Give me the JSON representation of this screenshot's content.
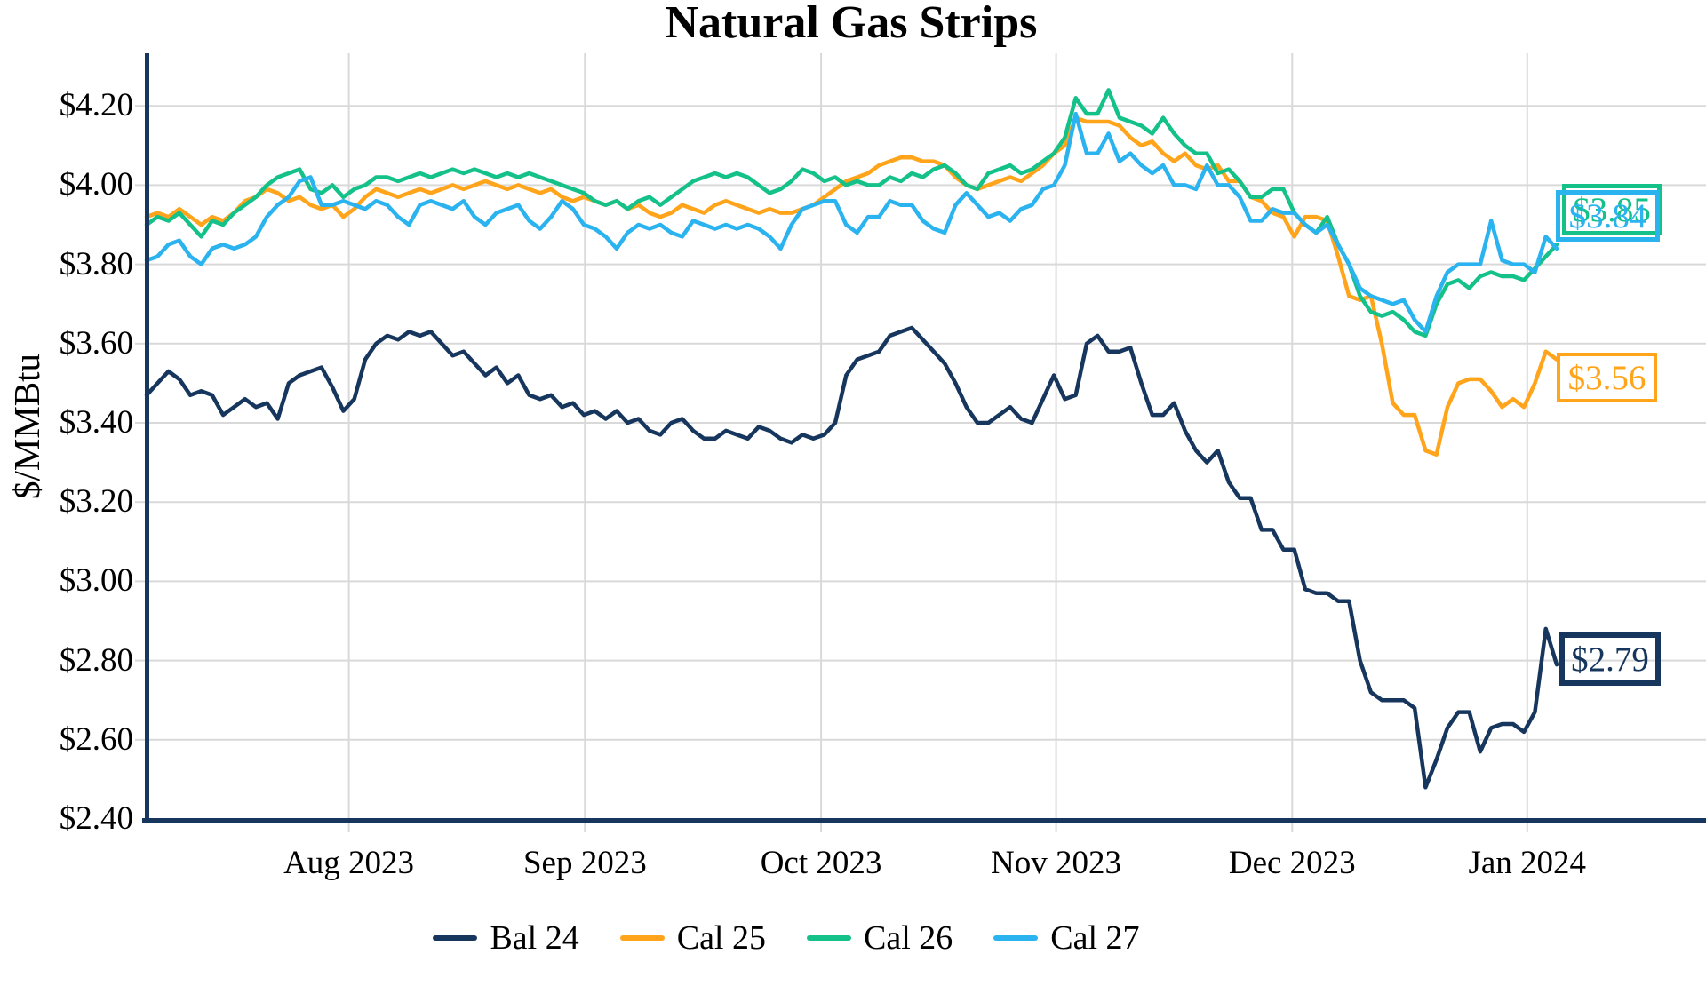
{
  "title": "Natural Gas Strips",
  "y_axis": {
    "label": "$/MMBtu",
    "tick_labels": [
      "$4.20",
      "$4.00",
      "$3.80",
      "$3.60",
      "$3.40",
      "$3.20",
      "$3.00",
      "$2.80",
      "$2.60",
      "$2.40"
    ]
  },
  "x_axis": {
    "tick_labels": [
      "Aug 2023",
      "Sep 2023",
      "Oct 2023",
      "Nov 2023",
      "Dec 2023",
      "Jan 2024"
    ]
  },
  "colors": {
    "bal24": "#17365D",
    "cal25": "#FFA41B",
    "cal26": "#14C189",
    "cal27": "#2BB3F0",
    "gridline": "#D9D9D9",
    "axis": "#17365D"
  },
  "end_labels": [
    {
      "series": "Cal 26",
      "text": "$3.85"
    },
    {
      "series": "Cal 27",
      "text": "$3.84"
    },
    {
      "series": "Cal 25",
      "text": "$3.56"
    },
    {
      "series": "Bal 24",
      "text": "$2.79"
    }
  ],
  "chart_data": {
    "type": "line",
    "title": "Natural Gas Strips",
    "ylabel": "$/MMBtu",
    "ylim": [
      2.4,
      4.3
    ],
    "y_ticks": [
      4.2,
      4.0,
      3.8,
      3.6,
      3.4,
      3.2,
      3.0,
      2.8,
      2.6,
      2.4
    ],
    "grid": true,
    "legend_position": "bottom",
    "x_range": [
      0,
      129
    ],
    "x_tick_labels": [
      "Aug 2023",
      "Sep 2023",
      "Oct 2023",
      "Nov 2023",
      "Dec 2023",
      "Jan 2024"
    ],
    "x_tick_positions": [
      18.5,
      40.1,
      61.7,
      83.2,
      104.8,
      126.3
    ],
    "series": [
      {
        "name": "Bal 24",
        "color": "#17365D",
        "end_value": 2.79,
        "end_label": "$2.79",
        "values": [
          3.47,
          3.5,
          3.53,
          3.51,
          3.47,
          3.48,
          3.47,
          3.42,
          3.44,
          3.46,
          3.44,
          3.45,
          3.41,
          3.5,
          3.52,
          3.53,
          3.54,
          3.49,
          3.43,
          3.46,
          3.56,
          3.6,
          3.62,
          3.61,
          3.63,
          3.62,
          3.63,
          3.6,
          3.57,
          3.58,
          3.55,
          3.52,
          3.54,
          3.5,
          3.52,
          3.47,
          3.46,
          3.47,
          3.44,
          3.45,
          3.42,
          3.43,
          3.41,
          3.43,
          3.4,
          3.41,
          3.38,
          3.37,
          3.4,
          3.41,
          3.38,
          3.36,
          3.36,
          3.38,
          3.37,
          3.36,
          3.39,
          3.38,
          3.36,
          3.35,
          3.37,
          3.36,
          3.37,
          3.4,
          3.52,
          3.56,
          3.57,
          3.58,
          3.62,
          3.63,
          3.64,
          3.61,
          3.58,
          3.55,
          3.5,
          3.44,
          3.4,
          3.4,
          3.42,
          3.44,
          3.41,
          3.4,
          3.46,
          3.52,
          3.46,
          3.47,
          3.6,
          3.62,
          3.58,
          3.58,
          3.59,
          3.5,
          3.42,
          3.42,
          3.45,
          3.38,
          3.33,
          3.3,
          3.33,
          3.25,
          3.21,
          3.21,
          3.13,
          3.13,
          3.08,
          3.08,
          2.98,
          2.97,
          2.97,
          2.95,
          2.95,
          2.8,
          2.72,
          2.7,
          2.7,
          2.7,
          2.68,
          2.48,
          2.55,
          2.63,
          2.67,
          2.67,
          2.57,
          2.63,
          2.64,
          2.64,
          2.62,
          2.67,
          2.88,
          2.79
        ]
      },
      {
        "name": "Cal 25",
        "color": "#FFA41B",
        "end_value": 3.56,
        "end_label": "$3.56",
        "values": [
          3.92,
          3.93,
          3.92,
          3.94,
          3.92,
          3.9,
          3.92,
          3.91,
          3.93,
          3.96,
          3.97,
          3.99,
          3.98,
          3.96,
          3.97,
          3.95,
          3.94,
          3.95,
          3.92,
          3.94,
          3.97,
          3.99,
          3.98,
          3.97,
          3.98,
          3.99,
          3.98,
          3.99,
          4.0,
          3.99,
          4.0,
          4.01,
          4.0,
          3.99,
          4.0,
          3.99,
          3.98,
          3.99,
          3.97,
          3.96,
          3.97,
          3.96,
          3.95,
          3.96,
          3.94,
          3.95,
          3.93,
          3.92,
          3.93,
          3.95,
          3.94,
          3.93,
          3.95,
          3.96,
          3.95,
          3.94,
          3.93,
          3.94,
          3.93,
          3.93,
          3.94,
          3.95,
          3.97,
          3.99,
          4.01,
          4.02,
          4.03,
          4.05,
          4.06,
          4.07,
          4.07,
          4.06,
          4.06,
          4.05,
          4.02,
          4.0,
          3.99,
          4.0,
          4.01,
          4.02,
          4.01,
          4.03,
          4.05,
          4.08,
          4.1,
          4.17,
          4.16,
          4.16,
          4.16,
          4.15,
          4.12,
          4.1,
          4.11,
          4.08,
          4.06,
          4.08,
          4.05,
          4.04,
          4.05,
          4.01,
          4.01,
          3.97,
          3.96,
          3.93,
          3.92,
          3.87,
          3.92,
          3.92,
          3.91,
          3.82,
          3.72,
          3.71,
          3.72,
          3.6,
          3.45,
          3.42,
          3.42,
          3.33,
          3.32,
          3.44,
          3.5,
          3.51,
          3.51,
          3.48,
          3.44,
          3.46,
          3.44,
          3.5,
          3.58,
          3.56
        ]
      },
      {
        "name": "Cal 26",
        "color": "#14C189",
        "end_value": 3.85,
        "end_label": "$3.85",
        "values": [
          3.9,
          3.92,
          3.91,
          3.93,
          3.9,
          3.87,
          3.91,
          3.9,
          3.93,
          3.95,
          3.97,
          4.0,
          4.02,
          4.03,
          4.04,
          3.99,
          3.98,
          4.0,
          3.97,
          3.99,
          4.0,
          4.02,
          4.02,
          4.01,
          4.02,
          4.03,
          4.02,
          4.03,
          4.04,
          4.03,
          4.04,
          4.03,
          4.02,
          4.03,
          4.02,
          4.03,
          4.02,
          4.01,
          4.0,
          3.99,
          3.98,
          3.96,
          3.95,
          3.96,
          3.94,
          3.96,
          3.97,
          3.95,
          3.97,
          3.99,
          4.01,
          4.02,
          4.03,
          4.02,
          4.03,
          4.02,
          4.0,
          3.98,
          3.99,
          4.01,
          4.04,
          4.03,
          4.01,
          4.02,
          4.0,
          4.01,
          4.0,
          4.0,
          4.02,
          4.01,
          4.03,
          4.02,
          4.04,
          4.05,
          4.03,
          4.0,
          3.99,
          4.03,
          4.04,
          4.05,
          4.03,
          4.04,
          4.06,
          4.08,
          4.12,
          4.22,
          4.18,
          4.18,
          4.24,
          4.17,
          4.16,
          4.15,
          4.13,
          4.17,
          4.13,
          4.1,
          4.08,
          4.08,
          4.03,
          4.04,
          4.01,
          3.97,
          3.97,
          3.99,
          3.99,
          3.93,
          3.9,
          3.88,
          3.92,
          3.85,
          3.8,
          3.72,
          3.68,
          3.67,
          3.68,
          3.66,
          3.63,
          3.62,
          3.7,
          3.75,
          3.76,
          3.74,
          3.77,
          3.78,
          3.77,
          3.77,
          3.76,
          3.79,
          3.82,
          3.85
        ]
      },
      {
        "name": "Cal 27",
        "color": "#2BB3F0",
        "end_value": 3.84,
        "end_label": "$3.84",
        "values": [
          3.81,
          3.82,
          3.85,
          3.86,
          3.82,
          3.8,
          3.84,
          3.85,
          3.84,
          3.85,
          3.87,
          3.92,
          3.95,
          3.97,
          4.01,
          4.02,
          3.95,
          3.95,
          3.96,
          3.95,
          3.94,
          3.96,
          3.95,
          3.92,
          3.9,
          3.95,
          3.96,
          3.95,
          3.94,
          3.96,
          3.92,
          3.9,
          3.93,
          3.94,
          3.95,
          3.91,
          3.89,
          3.92,
          3.96,
          3.94,
          3.9,
          3.89,
          3.87,
          3.84,
          3.88,
          3.9,
          3.89,
          3.9,
          3.88,
          3.87,
          3.91,
          3.9,
          3.89,
          3.9,
          3.89,
          3.9,
          3.89,
          3.87,
          3.84,
          3.9,
          3.94,
          3.95,
          3.96,
          3.96,
          3.9,
          3.88,
          3.92,
          3.92,
          3.96,
          3.95,
          3.95,
          3.91,
          3.89,
          3.88,
          3.95,
          3.98,
          3.95,
          3.92,
          3.93,
          3.91,
          3.94,
          3.95,
          3.99,
          4.0,
          4.05,
          4.18,
          4.08,
          4.08,
          4.13,
          4.06,
          4.08,
          4.05,
          4.03,
          4.05,
          4.0,
          4.0,
          3.99,
          4.05,
          4.0,
          4.0,
          3.97,
          3.91,
          3.91,
          3.94,
          3.93,
          3.93,
          3.9,
          3.88,
          3.9,
          3.85,
          3.8,
          3.74,
          3.72,
          3.71,
          3.7,
          3.71,
          3.66,
          3.63,
          3.72,
          3.78,
          3.8,
          3.8,
          3.8,
          3.91,
          3.81,
          3.8,
          3.8,
          3.78,
          3.87,
          3.84
        ]
      }
    ]
  }
}
